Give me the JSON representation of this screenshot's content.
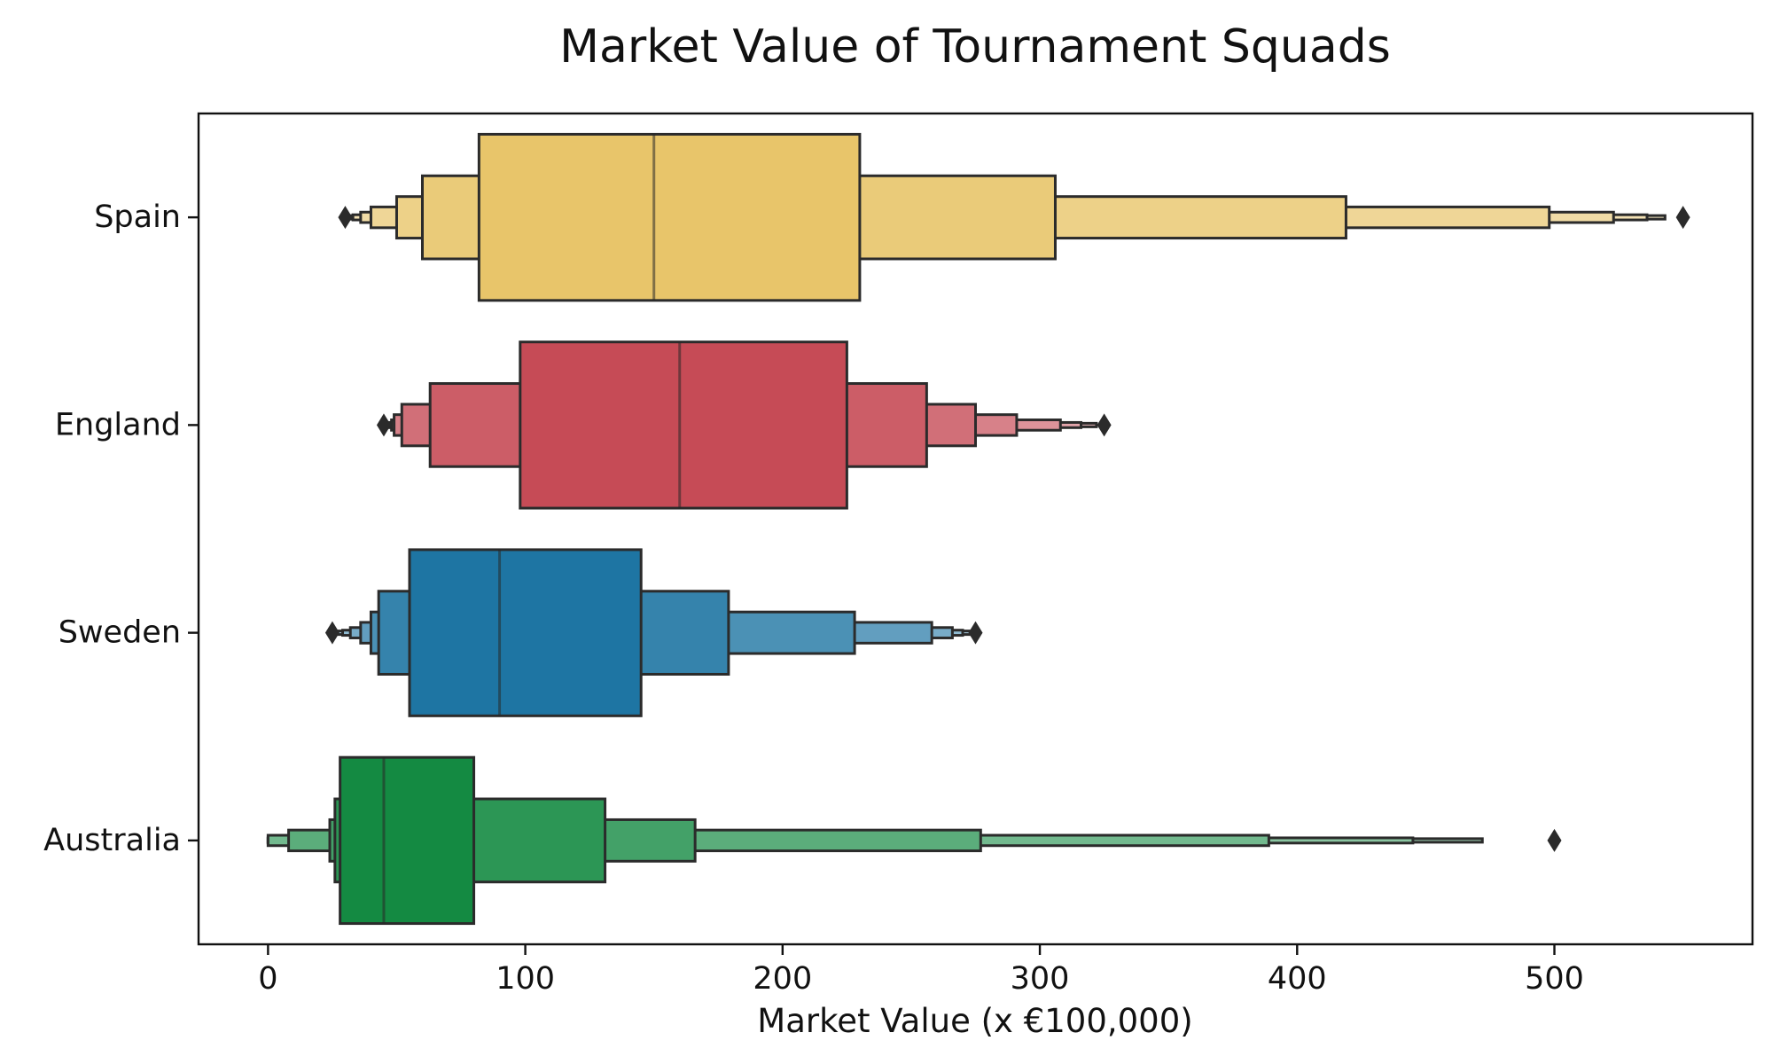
{
  "chart_data": {
    "type": "boxen",
    "orientation": "horizontal",
    "title": "Market Value of Tournament Squads",
    "xlabel": "Market Value (x €100,000)",
    "ylabel": "",
    "xlim": [
      -27,
      577
    ],
    "xticks": [
      0,
      100,
      200,
      300,
      400,
      500
    ],
    "legend": "none",
    "grid": false,
    "categories": [
      "Spain",
      "England",
      "Sweden",
      "Australia"
    ],
    "series": [
      {
        "name": "Spain",
        "color": "#e8c56a",
        "median": 150,
        "levels": [
          [
            82,
            230
          ],
          [
            60,
            306
          ],
          [
            50,
            419
          ],
          [
            40,
            498
          ],
          [
            36,
            523
          ],
          [
            33,
            536
          ],
          [
            31,
            543
          ]
        ],
        "outliers": [
          30,
          550
        ]
      },
      {
        "name": "England",
        "color": "#c64b56",
        "median": 160,
        "levels": [
          [
            98,
            225
          ],
          [
            63,
            256
          ],
          [
            52,
            275
          ],
          [
            49,
            291
          ],
          [
            48,
            308
          ],
          [
            47,
            316
          ],
          [
            46,
            322
          ]
        ],
        "outliers": [
          45,
          325
        ]
      },
      {
        "name": "Sweden",
        "color": "#1e75a3",
        "median": 90,
        "levels": [
          [
            55,
            145
          ],
          [
            43,
            179
          ],
          [
            40,
            228
          ],
          [
            36,
            258
          ],
          [
            32,
            266
          ],
          [
            29,
            270
          ],
          [
            27,
            273
          ]
        ],
        "outliers": [
          25,
          275
        ]
      },
      {
        "name": "Australia",
        "color": "#148a42",
        "median": 45,
        "levels": [
          [
            28,
            80
          ],
          [
            26,
            131
          ],
          [
            24,
            166
          ],
          [
            8,
            277
          ],
          [
            0,
            389
          ],
          [
            0,
            445
          ],
          [
            0,
            472
          ]
        ],
        "outliers": [
          500
        ]
      }
    ]
  }
}
